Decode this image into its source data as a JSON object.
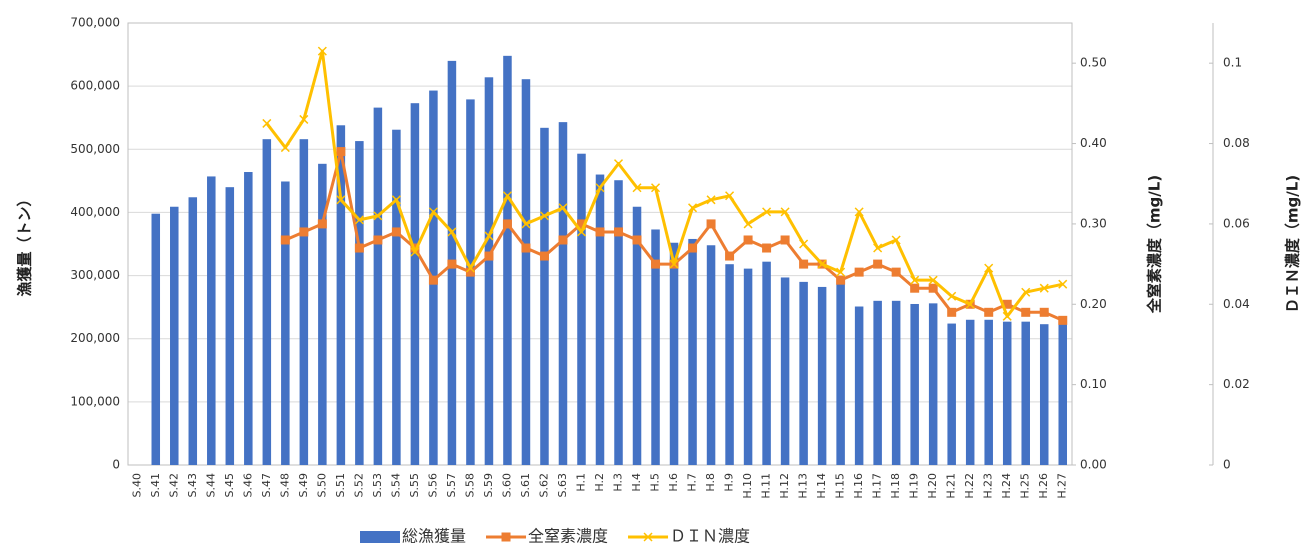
{
  "chart_data": {
    "type": "bar",
    "categories": [
      "S.40",
      "S.41",
      "S.42",
      "S.43",
      "S.44",
      "S.45",
      "S.46",
      "S.47",
      "S.48",
      "S.49",
      "S.50",
      "S.51",
      "S.52",
      "S.53",
      "S.54",
      "S.55",
      "S.56",
      "S.57",
      "S.58",
      "S.59",
      "S.60",
      "S.61",
      "S.62",
      "S.63",
      "H.1",
      "H.2",
      "H.3",
      "H.4",
      "H.5",
      "H.6",
      "H.7",
      "H.8",
      "H.9",
      "H.10",
      "H.11",
      "H.12",
      "H.13",
      "H.14",
      "H.15",
      "H.16",
      "H.17",
      "H.18",
      "H.19",
      "H.20",
      "H.21",
      "H.22",
      "H.23",
      "H.24",
      "H.25",
      "H.26",
      "H.27"
    ],
    "series": [
      {
        "name": "総漁獲量",
        "type": "bar",
        "color": "#4472c4",
        "axis": "y",
        "values": [
          null,
          398000,
          409000,
          424000,
          457000,
          440000,
          464000,
          516000,
          449000,
          516000,
          477000,
          538000,
          513000,
          566000,
          531000,
          573000,
          593000,
          640000,
          579000,
          614000,
          648000,
          611000,
          534000,
          543000,
          493000,
          460000,
          451000,
          409000,
          373000,
          352000,
          358000,
          348000,
          318000,
          311000,
          322000,
          297000,
          290000,
          282000,
          287000,
          251000,
          260000,
          260000,
          255000,
          256000,
          224000,
          230000,
          230000,
          227000,
          227000,
          223000,
          223000
        ]
      },
      {
        "name": "全窒素濃度",
        "type": "line",
        "marker": "square",
        "color": "#ed7d31",
        "axis": "y2",
        "values": [
          null,
          null,
          null,
          null,
          null,
          null,
          null,
          null,
          0.28,
          0.29,
          0.3,
          0.39,
          0.27,
          0.28,
          0.29,
          0.27,
          0.23,
          0.25,
          0.24,
          0.26,
          0.3,
          0.27,
          0.26,
          0.28,
          0.3,
          0.29,
          0.29,
          0.28,
          0.25,
          0.25,
          0.27,
          0.3,
          0.26,
          0.28,
          0.27,
          0.28,
          0.25,
          0.25,
          0.23,
          0.24,
          0.25,
          0.24,
          0.22,
          0.22,
          0.19,
          0.2,
          0.19,
          0.2,
          0.19,
          0.19,
          0.18
        ]
      },
      {
        "name": "ＤＩＮ濃度",
        "type": "line",
        "marker": "x",
        "color": "#ffc000",
        "axis": "y3",
        "values": [
          null,
          null,
          null,
          null,
          null,
          null,
          null,
          0.085,
          0.079,
          0.086,
          0.103,
          0.066,
          0.061,
          0.062,
          0.066,
          0.053,
          0.063,
          0.058,
          0.049,
          0.057,
          0.067,
          0.06,
          0.062,
          0.064,
          0.058,
          0.069,
          0.075,
          0.069,
          0.069,
          0.05,
          0.064,
          0.066,
          0.067,
          0.06,
          0.063,
          0.063,
          0.055,
          0.05,
          0.048,
          0.063,
          0.054,
          0.056,
          0.046,
          0.046,
          0.042,
          0.04,
          0.049,
          0.037,
          0.043,
          0.044,
          0.045
        ]
      }
    ],
    "ylabel": "漁獲量（トン）",
    "y2label": "全窒素濃度（mg/L)",
    "y3label": "ＤＩＮ濃度（mg/L)",
    "ylim": [
      0,
      700000
    ],
    "yticks": [
      {
        "value": 0,
        "label": "0"
      },
      {
        "value": 100000,
        "label": "100,000"
      },
      {
        "value": 200000,
        "label": "200,000"
      },
      {
        "value": 300000,
        "label": "300,000"
      },
      {
        "value": 400000,
        "label": "400,000"
      },
      {
        "value": 500000,
        "label": "500,000"
      },
      {
        "value": 600000,
        "label": "600,000"
      },
      {
        "value": 700000,
        "label": "700,000"
      }
    ],
    "y2lim": [
      0,
      0.55
    ],
    "y2ticks": [
      {
        "value": 0,
        "label": "0.00"
      },
      {
        "value": 0.1,
        "label": "0.10"
      },
      {
        "value": 0.2,
        "label": "0.20"
      },
      {
        "value": 0.3,
        "label": "0.30"
      },
      {
        "value": 0.4,
        "label": "0.40"
      },
      {
        "value": 0.5,
        "label": "0.50"
      }
    ],
    "y3lim": [
      0,
      0.11
    ],
    "y3ticks": [
      0,
      0.02,
      0.04,
      0.06,
      0.08,
      0.1
    ],
    "grid": true,
    "legend": "bottom"
  }
}
